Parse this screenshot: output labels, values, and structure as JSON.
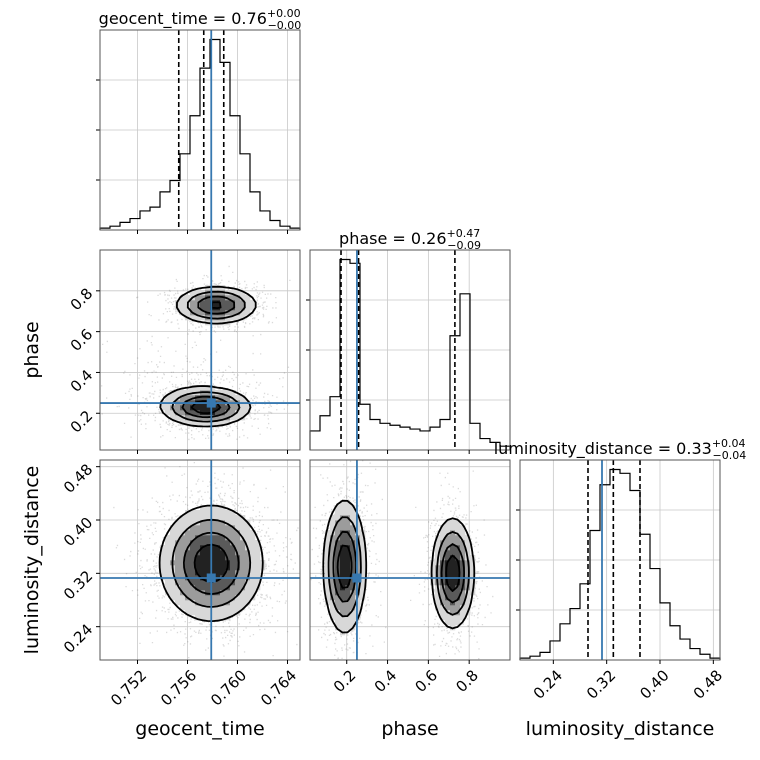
{
  "chart_data": {
    "type": "corner",
    "parameters": [
      "geocent_time",
      "phase",
      "luminosity_distance"
    ],
    "truths": {
      "geocent_time": 0.7579,
      "phase": 0.25,
      "luminosity_distance": 0.313
    },
    "quantiles": {
      "geocent_time": [
        0.7553,
        0.7573,
        0.7589
      ],
      "phase": [
        0.172,
        0.258,
        0.73
      ],
      "luminosity_distance": [
        0.292,
        0.33,
        0.37
      ]
    },
    "titles": {
      "geocent_time": {
        "label": "geocent_time",
        "value": "0.76",
        "plus": "+0.00",
        "minus": "−0.00"
      },
      "phase": {
        "label": "phase",
        "value": "0.26",
        "plus": "+0.47",
        "minus": "−0.09"
      },
      "luminosity_distance": {
        "label": "luminosity_distance",
        "value": "0.33",
        "plus": "+0.04",
        "minus": "−0.04"
      }
    },
    "axes": {
      "geocent_time": {
        "range": [
          0.749,
          0.765
        ],
        "ticks": [
          0.752,
          0.756,
          0.76,
          0.764
        ],
        "tick_labels": [
          "0.752",
          "0.756",
          "0.760",
          "0.764"
        ]
      },
      "phase": {
        "range": [
          0.02,
          1.0
        ],
        "ticks": [
          0.2,
          0.4,
          0.6,
          0.8
        ],
        "tick_labels": [
          "0.2",
          "0.4",
          "0.6",
          "0.8"
        ]
      },
      "luminosity_distance": {
        "range": [
          0.19,
          0.49
        ],
        "ticks": [
          0.24,
          0.32,
          0.4,
          0.48
        ],
        "tick_labels": [
          "0.24",
          "0.32",
          "0.40",
          "0.48"
        ]
      }
    },
    "histograms": {
      "geocent_time": {
        "edges": [
          0.749,
          0.7498,
          0.7506,
          0.7514,
          0.7522,
          0.753,
          0.7538,
          0.7546,
          0.7554,
          0.7562,
          0.757,
          0.7578,
          0.7586,
          0.7594,
          0.7602,
          0.761,
          0.7618,
          0.7626,
          0.7634,
          0.7642,
          0.765
        ],
        "counts": [
          1,
          2,
          4,
          6,
          10,
          12,
          20,
          26,
          40,
          60,
          85,
          100,
          88,
          60,
          40,
          20,
          10,
          5,
          2,
          1
        ]
      },
      "phase": {
        "edges": [
          0.02,
          0.069,
          0.118,
          0.167,
          0.216,
          0.265,
          0.314,
          0.363,
          0.412,
          0.461,
          0.51,
          0.559,
          0.608,
          0.657,
          0.706,
          0.755,
          0.804,
          0.853,
          0.902,
          0.951,
          1.0
        ],
        "counts": [
          10,
          18,
          28,
          100,
          98,
          24,
          16,
          14,
          13,
          12,
          11,
          10,
          12,
          16,
          60,
          82,
          14,
          6,
          4,
          2
        ]
      },
      "luminosity_distance": {
        "edges": [
          0.19,
          0.205,
          0.22,
          0.235,
          0.25,
          0.265,
          0.28,
          0.295,
          0.31,
          0.325,
          0.34,
          0.355,
          0.37,
          0.385,
          0.4,
          0.415,
          0.43,
          0.445,
          0.46,
          0.475,
          0.49
        ],
        "counts": [
          1,
          2,
          4,
          10,
          19,
          27,
          40,
          68,
          92,
          100,
          98,
          89,
          66,
          48,
          30,
          18,
          11,
          6,
          3,
          1
        ]
      }
    },
    "density_modes": {
      "geocent_time|phase": [
        {
          "x": 0.7583,
          "y": 0.73,
          "sx": 0.0016,
          "sy": 0.045,
          "w": 0.45
        },
        {
          "x": 0.7575,
          "y": 0.23,
          "sx": 0.0017,
          "sy": 0.045,
          "w": 0.55
        },
        {
          "x": 0.7555,
          "y": 0.33,
          "sx": 0.003,
          "sy": 0.09,
          "w": 0.1
        }
      ],
      "geocent_time|luminosity_distance": [
        {
          "x": 0.7579,
          "y": 0.335,
          "sx": 0.002,
          "sy": 0.042,
          "w": 1.0
        }
      ],
      "phase|luminosity_distance": [
        {
          "x": 0.19,
          "y": 0.33,
          "sx": 0.05,
          "sy": 0.048,
          "w": 0.55
        },
        {
          "x": 0.72,
          "y": 0.32,
          "sx": 0.05,
          "sy": 0.04,
          "w": 0.45
        }
      ]
    }
  }
}
